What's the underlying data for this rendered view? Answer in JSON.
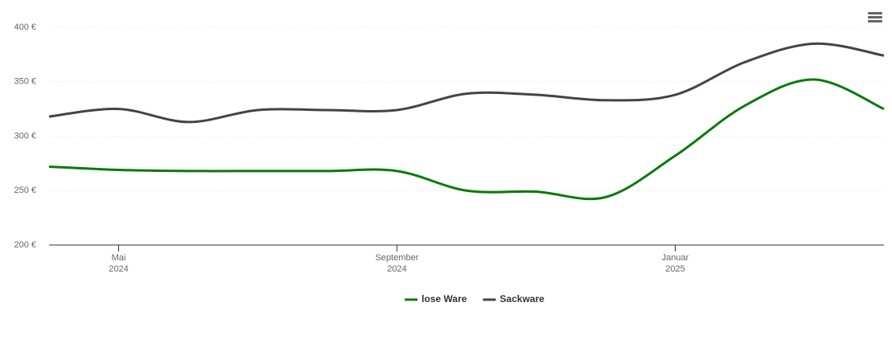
{
  "chart_data": {
    "type": "line",
    "x": [
      "2024-04",
      "2024-05",
      "2024-06",
      "2024-07",
      "2024-08",
      "2024-09",
      "2024-10",
      "2024-11",
      "2024-12",
      "2025-01",
      "2025-02",
      "2025-03",
      "2025-04"
    ],
    "series": [
      {
        "name": "lose Ware",
        "color": "#0a7a0a",
        "values": [
          272,
          269,
          268,
          268,
          268,
          268,
          250,
          249,
          244,
          282,
          328,
          352,
          325
        ]
      },
      {
        "name": "Sackware",
        "color": "#444444",
        "values": [
          318,
          325,
          313,
          324,
          324,
          324,
          339,
          338,
          333,
          338,
          368,
          385,
          374
        ]
      }
    ],
    "xlim": [
      "2024-04",
      "2025-04"
    ],
    "xticks": [
      {
        "value": "2024-05",
        "label": [
          "Mai",
          "2024"
        ]
      },
      {
        "value": "2024-09",
        "label": [
          "September",
          "2024"
        ]
      },
      {
        "value": "2025-01",
        "label": [
          "Januar",
          "2025"
        ]
      }
    ],
    "ylim": [
      200,
      400
    ],
    "yticks": [
      {
        "value": 200,
        "label": "200 €"
      },
      {
        "value": 250,
        "label": "250 €"
      },
      {
        "value": 300,
        "label": "300 €"
      },
      {
        "value": 350,
        "label": "350 €"
      },
      {
        "value": 400,
        "label": "400 €"
      }
    ],
    "grid": true,
    "legend": "bottom"
  }
}
